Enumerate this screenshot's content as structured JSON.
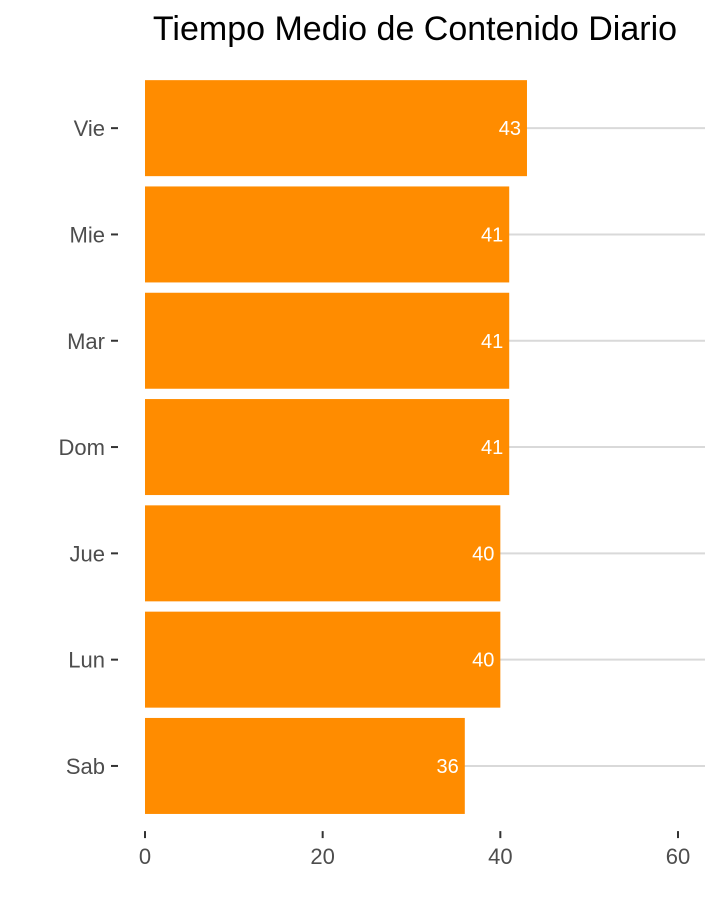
{
  "chart_data": {
    "type": "bar",
    "orientation": "horizontal",
    "title": "Tiempo Medio de Contenido Diario",
    "xlabel": "",
    "ylabel": "",
    "categories": [
      "Vie",
      "Mie",
      "Mar",
      "Dom",
      "Jue",
      "Lun",
      "Sab"
    ],
    "values": [
      43,
      41,
      41,
      41,
      40,
      40,
      36
    ],
    "data_labels": [
      "43",
      "41",
      "41",
      "41",
      "40",
      "40",
      "36"
    ],
    "xlim": [
      0,
      62
    ],
    "x_ticks": [
      0,
      20,
      40,
      60
    ],
    "x_tick_labels": [
      "0",
      "20",
      "40",
      "60"
    ],
    "bar_color": "#ff8c00",
    "grid": "vertical-major-lines-off, horizontal-category-lines-on",
    "legend": "none"
  }
}
